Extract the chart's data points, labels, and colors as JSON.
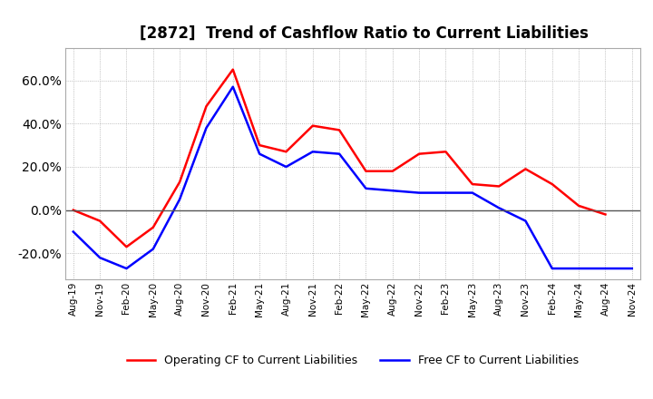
{
  "title": "[2872]  Trend of Cashflow Ratio to Current Liabilities",
  "title_fontsize": 12,
  "x_labels": [
    "Aug-19",
    "Nov-19",
    "Feb-20",
    "May-20",
    "Aug-20",
    "Nov-20",
    "Feb-21",
    "May-21",
    "Aug-21",
    "Nov-21",
    "Feb-22",
    "May-22",
    "Aug-22",
    "Nov-22",
    "Feb-23",
    "May-23",
    "Aug-23",
    "Nov-23",
    "Feb-24",
    "May-24",
    "Aug-24",
    "Nov-24"
  ],
  "operating_cf": [
    0,
    -5,
    -17,
    -8,
    13,
    48,
    65,
    30,
    27,
    39,
    37,
    18,
    18,
    26,
    27,
    12,
    11,
    19,
    12,
    2,
    -2,
    null
  ],
  "free_cf": [
    -10,
    -22,
    -27,
    -18,
    5,
    38,
    57,
    26,
    20,
    27,
    26,
    10,
    9,
    8,
    8,
    8,
    1,
    -5,
    -27,
    -27,
    -27,
    -27
  ],
  "operating_color": "#ff0000",
  "free_color": "#0000ff",
  "ylim": [
    -32,
    75
  ],
  "yticks": [
    -20,
    0,
    20,
    40,
    60
  ],
  "grid_color": "#aaaaaa",
  "background_color": "#ffffff",
  "legend_labels": [
    "Operating CF to Current Liabilities",
    "Free CF to Current Liabilities"
  ]
}
